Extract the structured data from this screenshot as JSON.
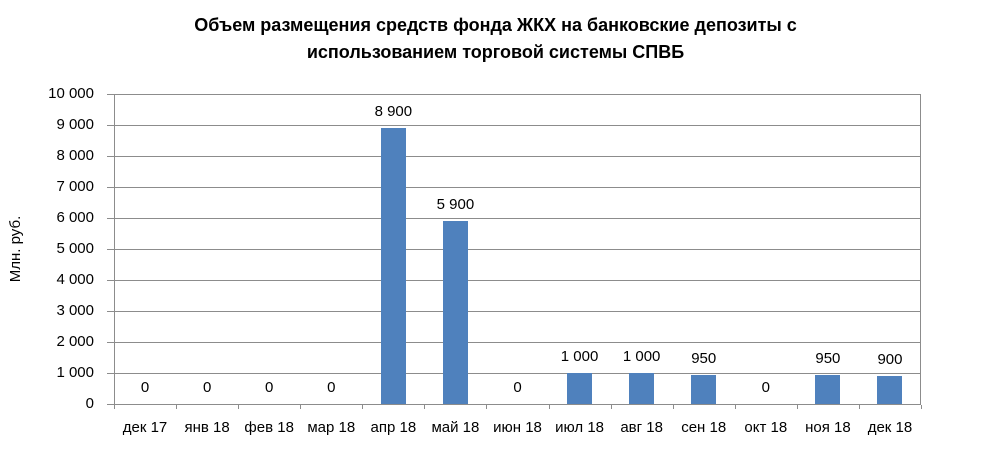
{
  "chart_data": {
    "type": "bar",
    "title": "Объем размещения средств фонда ЖКХ на банковские депозиты с использованием торговой системы СПВБ",
    "title_lines": [
      "Объем размещения средств фонда ЖКХ на банковские депозиты с",
      "использованием торговой системы СПВБ"
    ],
    "ylabel": "Млн. руб.",
    "xlabel": "",
    "categories": [
      "дек 17",
      "янв 18",
      "фев 18",
      "мар 18",
      "апр 18",
      "май 18",
      "июн 18",
      "июл 18",
      "авг 18",
      "сен 18",
      "окт 18",
      "ноя 18",
      "дек 18"
    ],
    "values": [
      0,
      0,
      0,
      0,
      8900,
      5900,
      0,
      1000,
      1000,
      950,
      0,
      950,
      900
    ],
    "value_labels": [
      "0",
      "0",
      "0",
      "0",
      "8 900",
      "5 900",
      "0",
      "1 000",
      "1 000",
      "950",
      "0",
      "950",
      "900"
    ],
    "ylim": [
      0,
      10000
    ],
    "ytick_step": 1000,
    "ytick_labels": [
      "0",
      "1 000",
      "2 000",
      "3 000",
      "4 000",
      "5 000",
      "6 000",
      "7 000",
      "8 000",
      "9 000",
      "10 000"
    ],
    "grid": true,
    "legend": "none",
    "bar_color": "#4F81BD",
    "grid_color": "#8C8C8C",
    "text_color": "#000000"
  }
}
